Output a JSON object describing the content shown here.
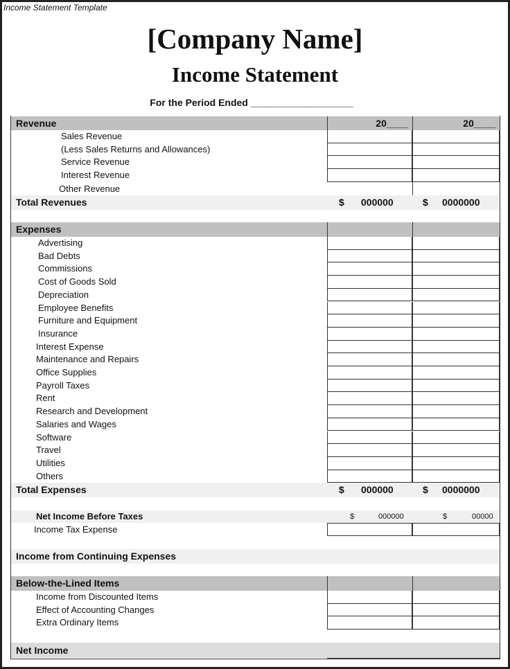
{
  "window_title": "Income Statement Template",
  "company": "[Company Name]",
  "title": "Income Statement",
  "period": "For the Period Ended ___________________",
  "columns": [
    "20____",
    "20____"
  ],
  "revenue": {
    "header": "Revenue",
    "items": [
      "Sales Revenue",
      "(Less Sales Returns and Allowances)",
      "Service Revenue",
      "Interest Revenue",
      "Other Revenue"
    ],
    "total": {
      "label": "Total Revenues",
      "values": [
        {
          "currency": "$",
          "value": "000000"
        },
        {
          "currency": "$",
          "value": "0000000"
        }
      ]
    }
  },
  "expenses": {
    "header": "Expenses",
    "items": [
      "Advertising",
      "Bad Debts",
      "Commissions",
      "Cost of Goods Sold",
      "Depreciation",
      "Employee Benefits",
      "Furniture and Equipment",
      "Insurance",
      "Interest Expense",
      "Maintenance and Repairs",
      "Office Supplies",
      "Payroll Taxes",
      "Rent",
      "Research and Development",
      "Salaries and Wages",
      "Software",
      "Travel",
      "Utilities",
      "Others"
    ],
    "total": {
      "label": "Total Expenses",
      "values": [
        {
          "currency": "$",
          "value": "000000"
        },
        {
          "currency": "$",
          "value": "0000000"
        }
      ]
    }
  },
  "net_before_taxes": {
    "label": "Net Income Before Taxes",
    "values": [
      {
        "currency": "$",
        "value": "000000"
      },
      {
        "currency": "$",
        "value": "00000"
      }
    ]
  },
  "income_tax": "Income Tax Expense",
  "continuing": "Income from  Continuing  Expenses",
  "below": {
    "header": "Below-the-Lined Items",
    "items": [
      "Income from Discounted Items",
      "Effect of Accounting Changes",
      "Extra Ordinary Items"
    ]
  },
  "net_income": "Net Income"
}
